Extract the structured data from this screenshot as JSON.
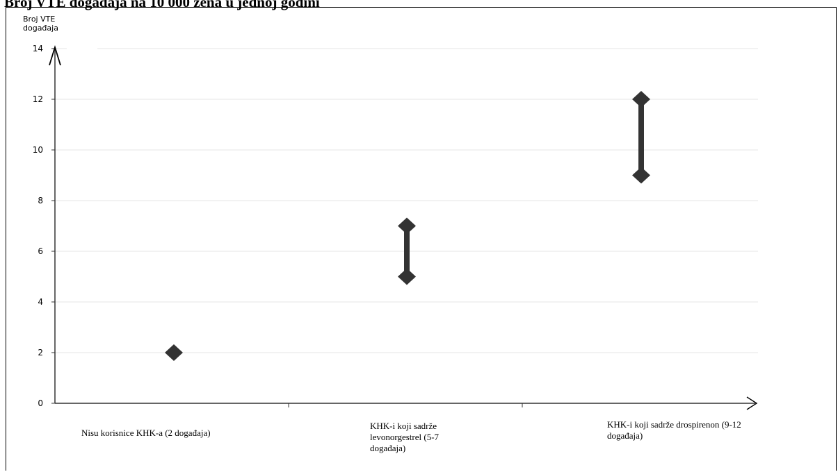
{
  "chart_data": {
    "type": "scatter",
    "title": "Broj VTE događaja na 10 000 žena u jednoj godini",
    "ylabel": "Broj VTE događaja",
    "xlabel": "",
    "ylim": [
      0,
      14
    ],
    "yticks": [
      0,
      2,
      4,
      6,
      8,
      10,
      12,
      14
    ],
    "grid": true,
    "categories": [
      "Nisu korisnice KHK-a (2 događaja)",
      "KHK-i koji sadrže levonorgestrel (5-7 događaja)",
      "KHK-i koji sadrže drospirenon (9-12 događaja)"
    ],
    "ranges": [
      {
        "min": 2,
        "max": 2
      },
      {
        "min": 5,
        "max": 7
      },
      {
        "min": 9,
        "max": 12
      }
    ],
    "marker_color": "#333333"
  }
}
